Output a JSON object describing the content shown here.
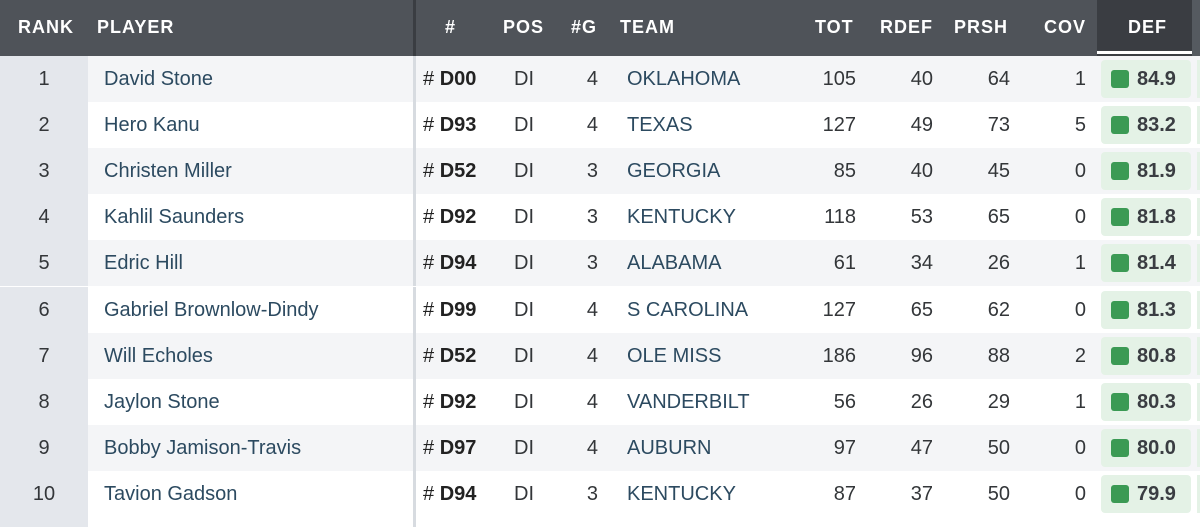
{
  "headers": {
    "rank": "RANK",
    "player": "PLAYER",
    "number": "#",
    "pos": "POS",
    "games": "#G",
    "team": "TEAM",
    "tot": "TOT",
    "rdef": "RDEF",
    "prsh": "PRSH",
    "cov": "COV",
    "def": "DEF"
  },
  "rows": [
    {
      "rank": "1",
      "player": "David Stone",
      "number": "D00",
      "pos": "DI",
      "games": "4",
      "team": "OKLAHOMA",
      "tot": "105",
      "rdef": "40",
      "prsh": "64",
      "cov": "1",
      "def": "84.9"
    },
    {
      "rank": "2",
      "player": "Hero Kanu",
      "number": "D93",
      "pos": "DI",
      "games": "4",
      "team": "TEXAS",
      "tot": "127",
      "rdef": "49",
      "prsh": "73",
      "cov": "5",
      "def": "83.2"
    },
    {
      "rank": "3",
      "player": "Christen Miller",
      "number": "D52",
      "pos": "DI",
      "games": "3",
      "team": "GEORGIA",
      "tot": "85",
      "rdef": "40",
      "prsh": "45",
      "cov": "0",
      "def": "81.9"
    },
    {
      "rank": "4",
      "player": "Kahlil Saunders",
      "number": "D92",
      "pos": "DI",
      "games": "3",
      "team": "KENTUCKY",
      "tot": "118",
      "rdef": "53",
      "prsh": "65",
      "cov": "0",
      "def": "81.8"
    },
    {
      "rank": "5",
      "player": "Edric Hill",
      "number": "D94",
      "pos": "DI",
      "games": "3",
      "team": "ALABAMA",
      "tot": "61",
      "rdef": "34",
      "prsh": "26",
      "cov": "1",
      "def": "81.4"
    },
    {
      "rank": "6",
      "player": "Gabriel Brownlow-Dindy",
      "number": "D99",
      "pos": "DI",
      "games": "4",
      "team": "S CAROLINA",
      "tot": "127",
      "rdef": "65",
      "prsh": "62",
      "cov": "0",
      "def": "81.3"
    },
    {
      "rank": "7",
      "player": "Will Echoles",
      "number": "D52",
      "pos": "DI",
      "games": "4",
      "team": "OLE MISS",
      "tot": "186",
      "rdef": "96",
      "prsh": "88",
      "cov": "2",
      "def": "80.8"
    },
    {
      "rank": "8",
      "player": "Jaylon Stone",
      "number": "D92",
      "pos": "DI",
      "games": "4",
      "team": "VANDERBILT",
      "tot": "56",
      "rdef": "26",
      "prsh": "29",
      "cov": "1",
      "def": "80.3"
    },
    {
      "rank": "9",
      "player": "Bobby Jamison-Travis",
      "number": "D97",
      "pos": "DI",
      "games": "4",
      "team": "AUBURN",
      "tot": "97",
      "rdef": "47",
      "prsh": "50",
      "cov": "0",
      "def": "80.0"
    },
    {
      "rank": "10",
      "player": "Tavion Gadson",
      "number": "D94",
      "pos": "DI",
      "games": "3",
      "team": "KENTUCKY",
      "tot": "87",
      "rdef": "37",
      "prsh": "50",
      "cov": "0",
      "def": "79.9"
    }
  ],
  "colors": {
    "grade_badge_bg": "#e4f2e6",
    "grade_square": "#3b9a54",
    "header_bg": "#4f5359",
    "link_text": "#2c4a60"
  }
}
